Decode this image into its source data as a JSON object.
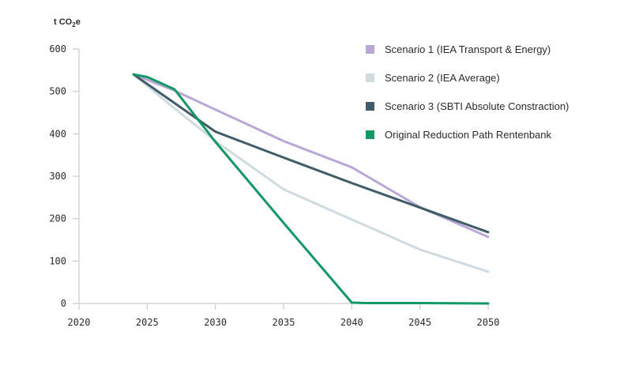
{
  "chart_data": {
    "type": "line",
    "unit_label": "t CO",
    "unit_label_sub": "2",
    "unit_label_end": "e",
    "x_ticks": [
      2020,
      2025,
      2030,
      2035,
      2040,
      2045,
      2050
    ],
    "y_ticks": [
      0,
      100,
      200,
      300,
      400,
      500,
      600
    ],
    "xlim": [
      2020,
      2050
    ],
    "ylim": [
      0,
      600
    ],
    "grid": false,
    "legend_position": "top-right",
    "series": [
      {
        "name": "Scenario 1 (IEA Transport & Energy)",
        "color": "#b9a7d8",
        "points": [
          [
            2024,
            540
          ],
          [
            2027,
            502
          ],
          [
            2030,
            457
          ],
          [
            2035,
            383
          ],
          [
            2040,
            321
          ],
          [
            2045,
            227
          ],
          [
            2050,
            157
          ]
        ]
      },
      {
        "name": "Scenario 2 (IEA Average)",
        "color": "#cfdbe0",
        "points": [
          [
            2024,
            540
          ],
          [
            2027,
            460
          ],
          [
            2030,
            383
          ],
          [
            2035,
            269
          ],
          [
            2040,
            198
          ],
          [
            2045,
            127
          ],
          [
            2050,
            75
          ]
        ]
      },
      {
        "name": "Scenario 3 (SBTI Absolute Constraction)",
        "color": "#3f5c68",
        "points": [
          [
            2024,
            540
          ],
          [
            2030,
            405
          ],
          [
            2035,
            344
          ],
          [
            2040,
            284
          ],
          [
            2045,
            226
          ],
          [
            2050,
            168
          ]
        ]
      },
      {
        "name": "Original Reduction Path Rentenbank",
        "color": "#149865",
        "points": [
          [
            2024,
            540
          ],
          [
            2025,
            534
          ],
          [
            2027,
            505
          ],
          [
            2030,
            381
          ],
          [
            2035,
            190
          ],
          [
            2040,
            2
          ],
          [
            2041,
            1
          ],
          [
            2045,
            1
          ],
          [
            2050,
            0
          ]
        ]
      }
    ]
  }
}
